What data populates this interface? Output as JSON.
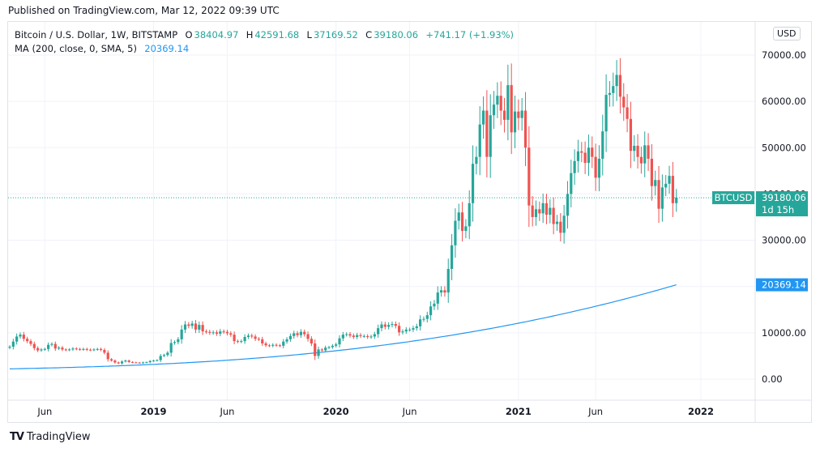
{
  "published": "Published on TradingView.com, Mar 12, 2022 09:39 UTC",
  "legend": {
    "symbol": "Bitcoin / U.S. Dollar, 1W, BITSTAMP",
    "open_label": "O",
    "open": "38404.97",
    "high_label": "H",
    "high": "42591.68",
    "low_label": "L",
    "low": "37169.52",
    "close_label": "C",
    "close": "39180.06",
    "change": "+741.17 (+1.93%)",
    "ma_label": "MA (200, close, 0, SMA, 5)",
    "ma_value": "20369.14"
  },
  "currency_button": "USD",
  "price_badge": {
    "symbol": "BTCUSD",
    "price": "39180.06",
    "countdown": "1d 15h"
  },
  "ma_badge": "20369.14",
  "footer": {
    "logo": "TV",
    "brand": "TradingView"
  },
  "colors": {
    "up": "#26a69a",
    "down": "#ef5350",
    "ma": "#2196f3",
    "grid": "#f0f3fa"
  },
  "chart_data": {
    "type": "candlestick",
    "title": "Bitcoin / U.S. Dollar, 1W, BITSTAMP",
    "ylabel": "USD",
    "ylim": [
      -3000,
      75000
    ],
    "yticks": [
      0,
      10000,
      20000,
      30000,
      40000,
      50000,
      60000,
      70000
    ],
    "ytick_labels": [
      "0.00",
      "10000.00",
      "20000.00",
      "30000.00",
      "40000.00",
      "50000.00",
      "60000.00",
      "70000.00"
    ],
    "xticks": [
      {
        "label": "Jun",
        "week": 10,
        "bold": false
      },
      {
        "label": "2019",
        "week": 41,
        "bold": true
      },
      {
        "label": "Jun",
        "week": 62,
        "bold": false
      },
      {
        "label": "2020",
        "week": 93,
        "bold": true
      },
      {
        "label": "Jun",
        "week": 114,
        "bold": false
      },
      {
        "label": "2021",
        "week": 145,
        "bold": true
      },
      {
        "label": "Jun",
        "week": 167,
        "bold": false
      },
      {
        "label": "2022",
        "week": 197,
        "bold": true
      }
    ],
    "last_price": 39180.06,
    "ma_last": 20369.14,
    "closes": [
      7000,
      8100,
      9200,
      9600,
      8700,
      8200,
      7600,
      6700,
      6200,
      6400,
      6500,
      7400,
      7600,
      6600,
      6800,
      6400,
      6300,
      6400,
      6600,
      6500,
      6400,
      6500,
      6350,
      6300,
      6400,
      6500,
      6300,
      5700,
      4300,
      4000,
      3600,
      3400,
      3800,
      4000,
      3700,
      3600,
      3550,
      3500,
      3600,
      3650,
      3900,
      4000,
      4100,
      5000,
      5200,
      5700,
      7800,
      8000,
      8600,
      10700,
      11800,
      11500,
      12000,
      10700,
      11700,
      10300,
      10200,
      10000,
      10100,
      9800,
      10300,
      10200,
      9900,
      9600,
      8200,
      8100,
      8200,
      9100,
      9400,
      9200,
      8700,
      8600,
      7700,
      7300,
      7200,
      7400,
      7300,
      7200,
      8100,
      8600,
      9300,
      9900,
      9500,
      10200,
      9700,
      8700,
      7700,
      5000,
      6400,
      6200,
      6800,
      6900,
      7200,
      7500,
      8800,
      9600,
      9700,
      9400,
      9100,
      9500,
      9300,
      9300,
      9100,
      9200,
      9700,
      11000,
      11800,
      11300,
      11700,
      11900,
      11500,
      10100,
      10300,
      10700,
      10700,
      11000,
      11400,
      12900,
      13000,
      13800,
      15700,
      16300,
      18700,
      19200,
      18700,
      23800,
      28900,
      34200,
      36000,
      32000,
      33000,
      38000,
      46500,
      48000,
      55000,
      58000,
      48000,
      57000,
      59300,
      61200,
      58000,
      56000,
      63500,
      53300,
      57800,
      56400,
      58000,
      50000,
      37500,
      35000,
      36700,
      35800,
      38000,
      35500,
      37000,
      33500,
      34000,
      31600,
      35300,
      40000,
      44500,
      47100,
      49200,
      48900,
      46700,
      50000,
      48000,
      43500,
      47600,
      53500,
      61400,
      61800,
      63300,
      65700,
      61000,
      58700,
      56200,
      49300,
      50400,
      48000,
      46600,
      50500,
      47600,
      41700,
      43000,
      36800,
      41400,
      42200,
      43900,
      38000,
      39200
    ],
    "ma_values": [
      2200,
      20369.14
    ]
  }
}
